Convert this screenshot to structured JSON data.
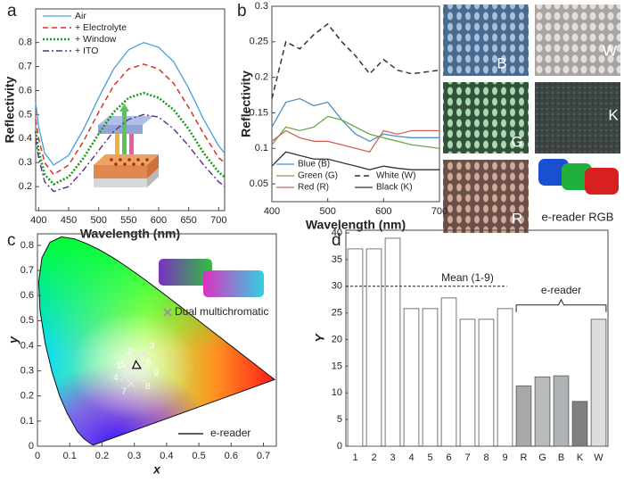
{
  "chart_data": [
    {
      "type": "line",
      "panel": "a",
      "x_label": "Wavelength (nm)",
      "y_label": "Reflectivity",
      "x": [
        395,
        400,
        410,
        425,
        450,
        475,
        500,
        525,
        550,
        575,
        600,
        625,
        650,
        675,
        700,
        710
      ],
      "series": [
        {
          "name": "Air",
          "color": "#4a9fd4",
          "line_style": "solid",
          "values": [
            0.55,
            0.45,
            0.34,
            0.29,
            0.33,
            0.44,
            0.57,
            0.69,
            0.77,
            0.8,
            0.78,
            0.72,
            0.61,
            0.48,
            0.37,
            0.34
          ]
        },
        {
          "name": "+ Electrolyte",
          "color": "#d0352e",
          "line_style": "dashed",
          "values": [
            0.48,
            0.4,
            0.3,
            0.25,
            0.29,
            0.39,
            0.51,
            0.62,
            0.69,
            0.71,
            0.69,
            0.63,
            0.53,
            0.42,
            0.32,
            0.3
          ]
        },
        {
          "name": "+ Window",
          "color": "#1a9a1a",
          "line_style": "dotted",
          "values": [
            0.43,
            0.35,
            0.25,
            0.21,
            0.24,
            0.32,
            0.42,
            0.51,
            0.57,
            0.59,
            0.57,
            0.52,
            0.44,
            0.34,
            0.26,
            0.24
          ]
        },
        {
          "name": "+ ITO",
          "color": "#5b2a82",
          "line_style": "dashdot",
          "values": [
            0.4,
            0.32,
            0.22,
            0.18,
            0.2,
            0.27,
            0.35,
            0.43,
            0.48,
            0.5,
            0.49,
            0.44,
            0.37,
            0.29,
            0.22,
            0.2
          ]
        }
      ],
      "xlim": [
        395,
        710
      ],
      "xticks": [
        400,
        450,
        500,
        550,
        600,
        650,
        700
      ],
      "ylim": [
        0.1,
        0.94
      ],
      "yticks": [
        0.2,
        0.3,
        0.4,
        0.5,
        0.6,
        0.7,
        0.8
      ]
    },
    {
      "type": "line",
      "panel": "b",
      "x_label": "Wavelength (nm)",
      "y_label": "Reflectivity",
      "x": [
        400,
        425,
        450,
        475,
        500,
        525,
        550,
        575,
        600,
        625,
        650,
        700
      ],
      "series": [
        {
          "name": "Blue (B)",
          "color": "#4a90c8",
          "line_style": "solid",
          "values": [
            0.13,
            0.165,
            0.17,
            0.16,
            0.165,
            0.14,
            0.12,
            0.11,
            0.12,
            0.117,
            0.115,
            0.115
          ]
        },
        {
          "name": "Green (G)",
          "color": "#6aaa4a",
          "line_style": "solid",
          "values": [
            0.105,
            0.13,
            0.125,
            0.13,
            0.145,
            0.14,
            0.13,
            0.12,
            0.115,
            0.11,
            0.105,
            0.1
          ]
        },
        {
          "name": "Red (R)",
          "color": "#d0655a",
          "line_style": "solid",
          "values": [
            0.11,
            0.125,
            0.115,
            0.11,
            0.11,
            0.105,
            0.1,
            0.095,
            0.125,
            0.12,
            0.125,
            0.125
          ]
        },
        {
          "name": "White (W)",
          "color": "#333333",
          "line_style": "dashed",
          "values": [
            0.17,
            0.25,
            0.24,
            0.26,
            0.275,
            0.25,
            0.23,
            0.205,
            0.225,
            0.21,
            0.205,
            0.21
          ]
        },
        {
          "name": "Black (K)",
          "color": "#333333",
          "line_style": "solid",
          "values": [
            0.075,
            0.095,
            0.09,
            0.085,
            0.085,
            0.08,
            0.075,
            0.07,
            0.075,
            0.072,
            0.07,
            0.07
          ]
        }
      ],
      "xlim": [
        400,
        700
      ],
      "xticks": [
        400,
        500,
        600,
        700
      ],
      "ylim": [
        0.025,
        0.3
      ],
      "yticks": [
        0.05,
        0.1,
        0.15,
        0.2,
        0.25,
        0.3
      ],
      "photo_labels": [
        "B",
        "W",
        "G",
        "K",
        "R"
      ],
      "photo_caption": "e-reader RGB"
    },
    {
      "type": "scatter",
      "panel": "c",
      "x_label": "x",
      "y_label": "y",
      "series": [
        {
          "name": "Dual multichromatic",
          "color": "#e8e8e8",
          "labels": [
            "1",
            "2",
            "3",
            "4",
            "5",
            "6",
            "7",
            "8",
            "9"
          ],
          "x": [
            0.28,
            0.31,
            0.33,
            0.27,
            0.29,
            0.32,
            0.29,
            0.32,
            0.34
          ],
          "y": [
            0.32,
            0.355,
            0.37,
            0.28,
            0.31,
            0.32,
            0.25,
            0.27,
            0.29
          ]
        },
        {
          "name": "e-reader",
          "color": "#000000",
          "x": [
            0.32,
            0.305,
            0.295
          ],
          "y": [
            0.31,
            0.34,
            0.31
          ]
        }
      ],
      "xlim": [
        0,
        0.74
      ],
      "xticks": [
        0,
        0.1,
        0.2,
        0.3,
        0.4,
        0.5,
        0.6,
        0.7
      ],
      "ylim": [
        0,
        0.846
      ],
      "yticks": [
        0,
        0.1,
        0.2,
        0.3,
        0.4,
        0.5,
        0.6,
        0.7,
        0.8
      ]
    },
    {
      "type": "bar",
      "panel": "d",
      "y_label": "Y",
      "categories": [
        "1",
        "2",
        "3",
        "4",
        "5",
        "6",
        "7",
        "8",
        "9",
        "R",
        "G",
        "B",
        "K",
        "W"
      ],
      "values": [
        37,
        37,
        39,
        25.8,
        25.8,
        27.8,
        23.8,
        23.8,
        25.8,
        11.3,
        13,
        13.2,
        8.4,
        23.8
      ],
      "colors": [
        "#ffffff",
        "#ffffff",
        "#ffffff",
        "#ffffff",
        "#ffffff",
        "#ffffff",
        "#ffffff",
        "#ffffff",
        "#ffffff",
        "#a8a8a8",
        "#b8bcbc",
        "#aeb4b6",
        "#808080",
        "#dddddd"
      ],
      "mean_line": 30,
      "mean_label": "Mean (1-9)",
      "group_label": "e-reader",
      "ylim": [
        0,
        40.5
      ],
      "yticks": [
        0,
        5,
        10,
        15,
        20,
        25,
        30,
        35,
        40
      ]
    }
  ]
}
